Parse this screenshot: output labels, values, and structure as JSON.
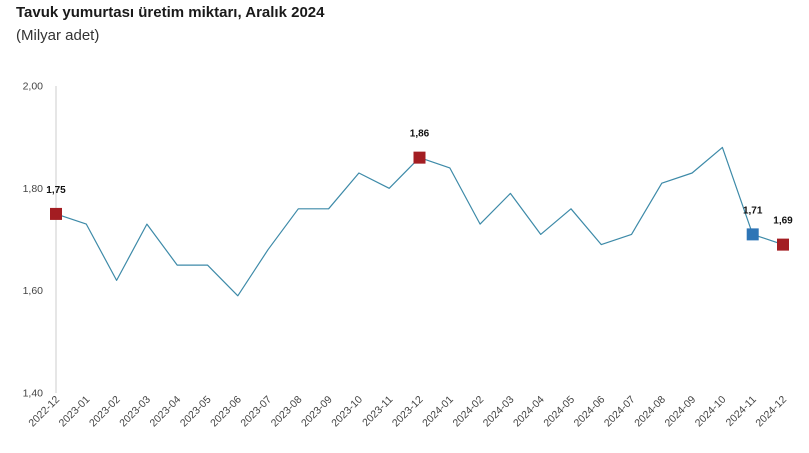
{
  "title": "Tavuk yumurtası üretim miktarı, Aralık 2024",
  "subtitle": "(Milyar adet)",
  "chart_data": {
    "type": "line",
    "title": "Tavuk yumurtası üretim miktarı, Aralık 2024",
    "subtitle": "(Milyar adet)",
    "xlabel": "",
    "ylabel": "",
    "ylim": [
      1.4,
      2.0
    ],
    "yticks": [
      1.4,
      1.6,
      1.8,
      2.0
    ],
    "ytick_labels": [
      "1,40",
      "1,60",
      "1,80",
      "2,00"
    ],
    "grid": false,
    "x": [
      "2022-12",
      "2023-01",
      "2023-02",
      "2023-03",
      "2023-04",
      "2023-05",
      "2023-06",
      "2023-07",
      "2023-08",
      "2023-09",
      "2023-10",
      "2023-11",
      "2023-12",
      "2024-01",
      "2024-02",
      "2024-03",
      "2024-04",
      "2024-05",
      "2024-06",
      "2024-07",
      "2024-08",
      "2024-09",
      "2024-10",
      "2024-11",
      "2024-12"
    ],
    "series": [
      {
        "values": [
          1.75,
          1.73,
          1.62,
          1.73,
          1.65,
          1.65,
          1.59,
          1.68,
          1.76,
          1.76,
          1.83,
          1.8,
          1.86,
          1.84,
          1.73,
          1.79,
          1.71,
          1.76,
          1.69,
          1.71,
          1.81,
          1.83,
          1.88,
          1.71,
          1.69
        ]
      }
    ],
    "markers": [
      {
        "index": 0,
        "label": "1,75",
        "color": "#a31d22"
      },
      {
        "index": 12,
        "label": "1,86",
        "color": "#a31d22"
      },
      {
        "index": 23,
        "label": "1,71",
        "color": "#2e75b6"
      },
      {
        "index": 24,
        "label": "1,69",
        "color": "#a31d22"
      }
    ],
    "line_color": "#3d8aa8",
    "axis_color": "#cccccc"
  }
}
